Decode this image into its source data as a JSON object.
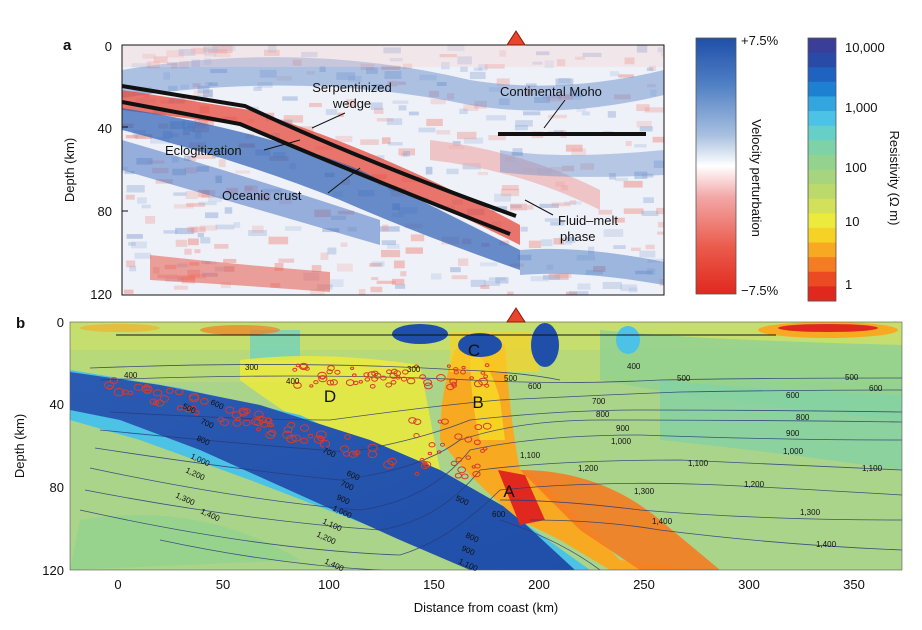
{
  "panel_a": {
    "label": "a",
    "ylabel": "Depth (km)",
    "yticks": [
      "0",
      "40",
      "80",
      "120"
    ],
    "annotations": {
      "serpentinized": [
        "Serpentinized",
        "wedge"
      ],
      "continental_moho": "Continental Moho",
      "eclogitization": "Eclogitization",
      "oceanic_crust": "Oceanic crust",
      "fluid_melt": [
        "Fluid–melt",
        "phase"
      ]
    }
  },
  "velocity_colorbar": {
    "top_label": "+7.5%",
    "bottom_label": "−7.5%",
    "title": "Velocity perturbation",
    "colors": [
      "#1f4fa8",
      "#4f7fc4",
      "#a8c0e0",
      "#ffffff",
      "#f2a8a8",
      "#ea5a4a",
      "#e0281e"
    ]
  },
  "resistivity_colorbar": {
    "title": "Resistivity (Ω m)",
    "ticks": [
      "10,000",
      "1,000",
      "100",
      "10",
      "1"
    ],
    "colors": [
      "#3a3e98",
      "#2a4aa8",
      "#1f62c0",
      "#1e80d0",
      "#33a6e0",
      "#4cc2e6",
      "#66d0c8",
      "#7fd2a8",
      "#93d28f",
      "#a7d47f",
      "#bcd96c",
      "#d3e05a",
      "#ecea3c",
      "#f6d226",
      "#f7a921",
      "#f47c22",
      "#ec4a22",
      "#e0281e"
    ]
  },
  "panel_b": {
    "label": "b",
    "ylabel": "Depth (km)",
    "xlabel": "Distance from coast (km)",
    "yticks": [
      "0",
      "40",
      "80",
      "120"
    ],
    "xticks": [
      "0",
      "50",
      "100",
      "150",
      "200",
      "250",
      "300",
      "350"
    ],
    "zones": [
      "A",
      "B",
      "C",
      "D"
    ]
  },
  "chart_data": {
    "type": "heatmap",
    "xlabel": "Distance from coast (km)",
    "ylabel": "Depth (km)",
    "xlim": [
      -20,
      385
    ],
    "ylim": [
      0,
      120
    ],
    "isotherm_labels": [
      "300",
      "400",
      "500",
      "600",
      "700",
      "800",
      "900",
      "1,000",
      "1,100",
      "1,200",
      "1,300",
      "1,400"
    ],
    "volcano_x_km": 188,
    "colors": {
      "slab": "#1f4fa8",
      "mantle": "#a9d48a",
      "hot": "#f5a623",
      "melt": "#e0281e",
      "quakes": "#d83a2a",
      "volcano": "#e8452c"
    }
  }
}
